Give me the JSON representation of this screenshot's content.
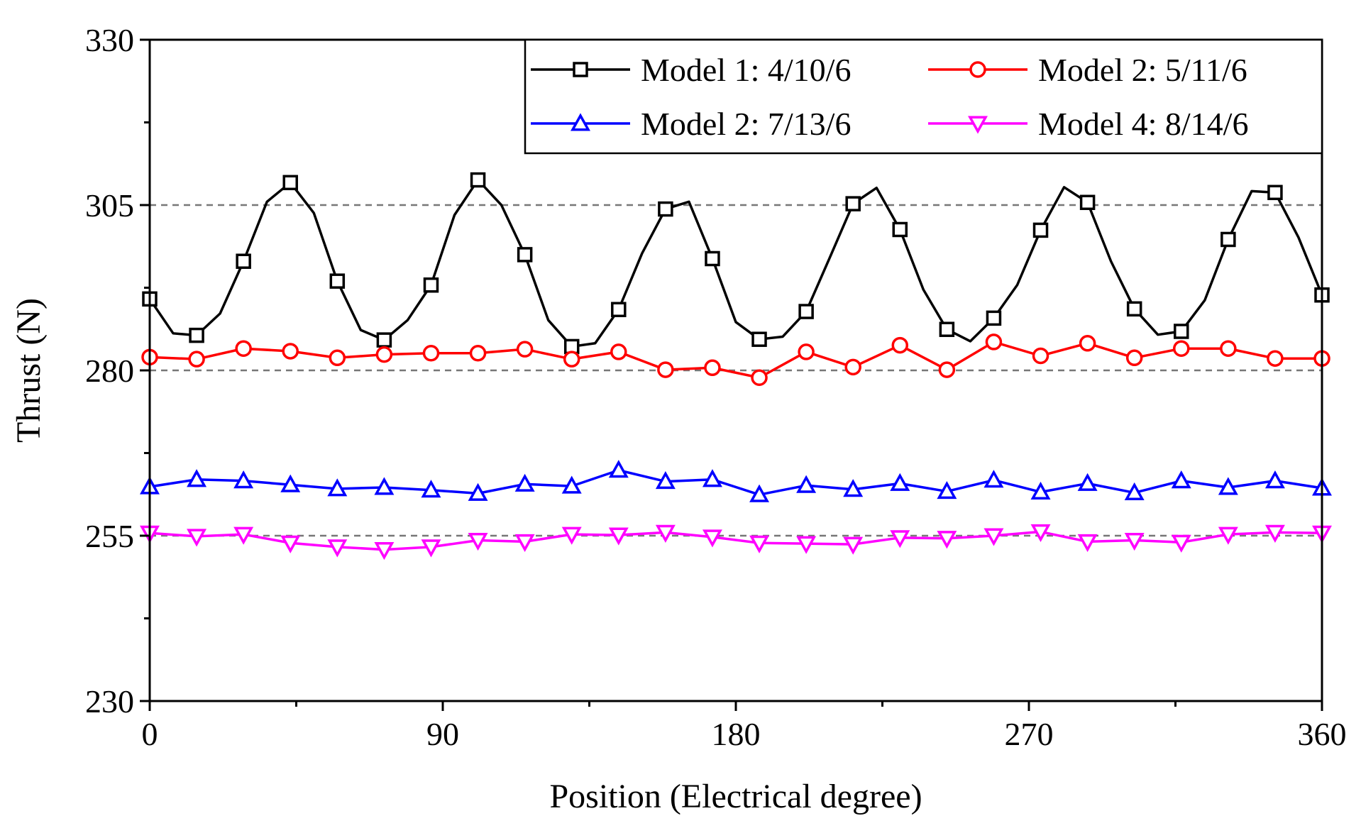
{
  "chart_data": {
    "type": "line",
    "title": "",
    "xlabel": "Position (Electrical degree)",
    "ylabel": "Thrust (N)",
    "xlim": [
      0,
      360
    ],
    "ylim": [
      230,
      330
    ],
    "xticks": [
      0,
      90,
      180,
      270,
      360
    ],
    "yticks": [
      230,
      255,
      280,
      305,
      330
    ],
    "reference_lines": [
      255,
      280,
      305
    ],
    "legend_position": "top-right",
    "series": [
      {
        "name": "Model 1: 4/10/6",
        "color": "#000000",
        "marker": "square",
        "x": [
          0,
          7.2,
          14.4,
          21.6,
          28.8,
          36,
          43.2,
          50.4,
          57.6,
          64.8,
          72,
          79.2,
          86.4,
          93.6,
          100.8,
          108,
          115.2,
          122.4,
          129.6,
          136.8,
          144,
          151.2,
          158.4,
          165.6,
          172.8,
          180,
          187.2,
          194.4,
          201.6,
          208.8,
          216,
          223.2,
          230.4,
          237.6,
          244.8,
          252,
          259.2,
          266.4,
          273.6,
          280.8,
          288,
          295.2,
          302.4,
          309.6,
          316.8,
          324,
          331.2,
          338.4,
          345.6,
          352.8,
          360
        ],
        "y": [
          290.8,
          285.6,
          285.3,
          288.6,
          296.5,
          305.5,
          308.4,
          303.8,
          293.5,
          286.1,
          284.6,
          287.6,
          292.9,
          303.5,
          308.8,
          305,
          297.5,
          287.6,
          283.6,
          284.1,
          289.2,
          297.7,
          304.4,
          305.5,
          296.9,
          287.3,
          284.7,
          285.1,
          288.9,
          297,
          305.2,
          307.6,
          301.3,
          292.2,
          286.2,
          284.4,
          287.9,
          292.9,
          301.2,
          307.7,
          305.4,
          296.5,
          289.3,
          285.4,
          285.9,
          290.6,
          299.8,
          307.1,
          306.9,
          300.1,
          291.4
        ]
      },
      {
        "name": "Model 2: 5/11/6",
        "color": "#ff0000",
        "marker": "circle",
        "x": [
          0,
          14.4,
          28.8,
          43.2,
          57.6,
          72,
          86.4,
          100.8,
          115.2,
          129.6,
          144,
          158.4,
          172.8,
          187.2,
          201.6,
          216,
          230.4,
          244.8,
          259.2,
          273.6,
          288,
          302.4,
          316.8,
          331.2,
          345.6,
          360
        ],
        "y": [
          282,
          281.7,
          283.3,
          282.9,
          281.9,
          282.4,
          282.6,
          282.6,
          283.2,
          281.7,
          282.8,
          280.1,
          280.4,
          278.9,
          282.8,
          280.5,
          283.8,
          280.1,
          284.3,
          282.2,
          284.1,
          281.9,
          283.3,
          283.3,
          281.8,
          281.8
        ]
      },
      {
        "name": "Model 2: 7/13/6",
        "color": "#0000ff",
        "marker": "triangle-up",
        "x": [
          0,
          14.4,
          28.8,
          43.2,
          57.6,
          72,
          86.4,
          100.8,
          115.2,
          129.6,
          144,
          158.4,
          172.8,
          187.2,
          201.6,
          216,
          230.4,
          244.8,
          259.2,
          273.6,
          288,
          302.4,
          316.8,
          331.2,
          345.6,
          360
        ],
        "y": [
          262.4,
          263.5,
          263.3,
          262.7,
          262.1,
          262.3,
          261.9,
          261.4,
          262.8,
          262.5,
          264.9,
          263.2,
          263.5,
          261.2,
          262.6,
          262,
          262.9,
          261.7,
          263.4,
          261.6,
          262.9,
          261.5,
          263.3,
          262.3,
          263.3,
          262.2
        ]
      },
      {
        "name": "Model 4: 8/14/6",
        "color": "#ff00ff",
        "marker": "triangle-down",
        "x": [
          0,
          14.4,
          28.8,
          43.2,
          57.6,
          72,
          86.4,
          100.8,
          115.2,
          129.6,
          144,
          158.4,
          172.8,
          187.2,
          201.6,
          216,
          230.4,
          244.8,
          259.2,
          273.6,
          288,
          302.4,
          316.8,
          331.2,
          345.6,
          360
        ],
        "y": [
          255.4,
          254.9,
          255.2,
          253.9,
          253.3,
          252.9,
          253.3,
          254.3,
          254.1,
          255.2,
          255.1,
          255.5,
          254.8,
          253.9,
          253.8,
          253.7,
          254.7,
          254.6,
          255,
          255.6,
          254.1,
          254.3,
          254,
          255.2,
          255.5,
          255.4
        ]
      }
    ]
  }
}
